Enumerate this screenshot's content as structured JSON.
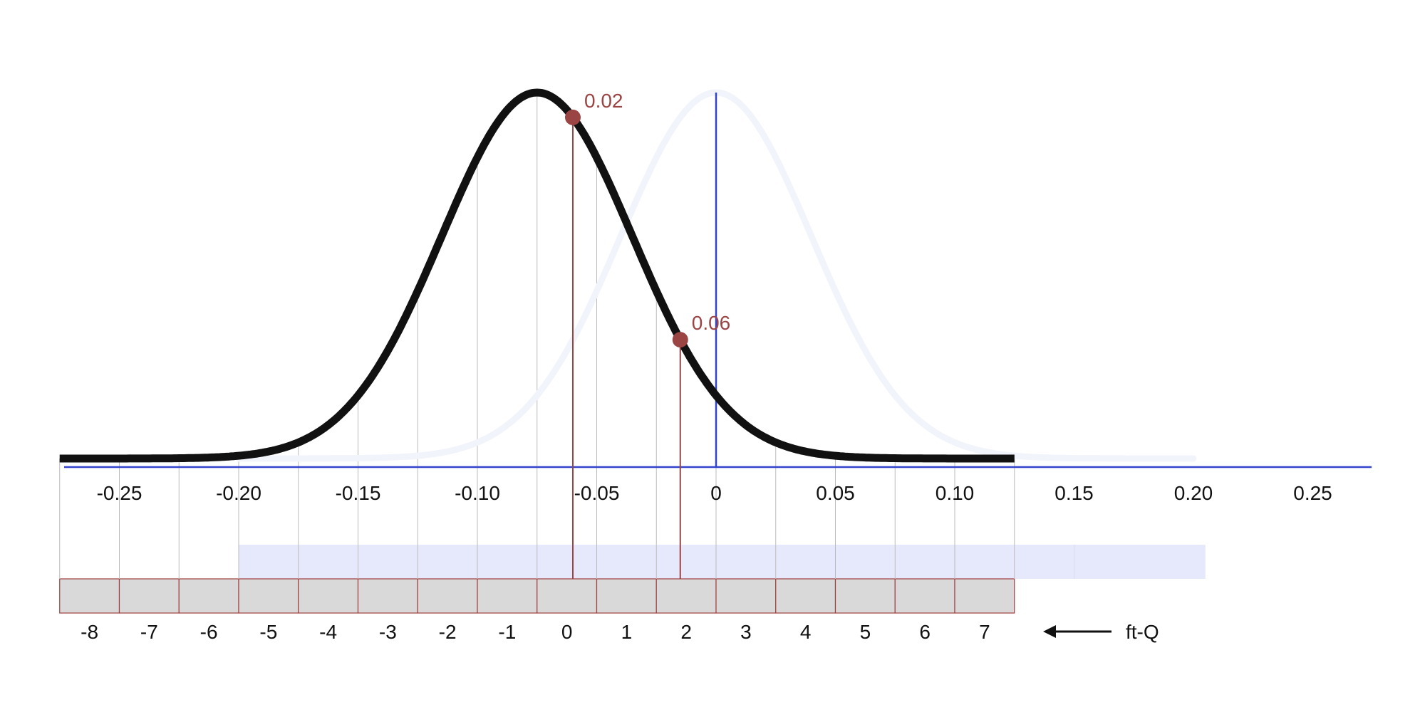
{
  "chart_data": {
    "type": "line",
    "x_axis": {
      "ticks": [
        -0.25,
        -0.2,
        -0.15,
        -0.1,
        -0.05,
        0,
        0.05,
        0.1,
        0.15,
        0.2,
        0.25
      ],
      "tick_labels": [
        "-0.25",
        "-0.20",
        "-0.15",
        "-0.10",
        "-0.05",
        "0",
        "0.05",
        "0.10",
        "0.15",
        "0.20",
        "0.25"
      ]
    },
    "curves": {
      "quantized": {
        "mean": -0.075,
        "std": 0.04,
        "color": "#111111"
      },
      "original": {
        "mean": 0.0,
        "std": 0.04,
        "color": "#f2f4fb"
      }
    },
    "highlighted_points": [
      {
        "x": -0.06,
        "label": "0.02",
        "color": "#9b4444"
      },
      {
        "x": -0.015,
        "label": "0.06",
        "color": "#9b4444"
      }
    ],
    "bins": {
      "labels": [
        "-8",
        "-7",
        "-6",
        "-5",
        "-4",
        "-3",
        "-2",
        "-1",
        "0",
        "1",
        "2",
        "3",
        "4",
        "5",
        "6",
        "7"
      ],
      "first_edge": -0.275,
      "width": 0.025
    },
    "original_range_bar": {
      "from": -0.2,
      "to": 0.2
    },
    "annotation": {
      "arrow": "left-arrow",
      "text": "ft-Q"
    },
    "colors": {
      "axis": "#3344cc",
      "range_bar": "#e6e9fb",
      "bin_fill": "#d9d9d9",
      "bin_border": "#a04040",
      "gridline": "#bbbbbb"
    }
  }
}
